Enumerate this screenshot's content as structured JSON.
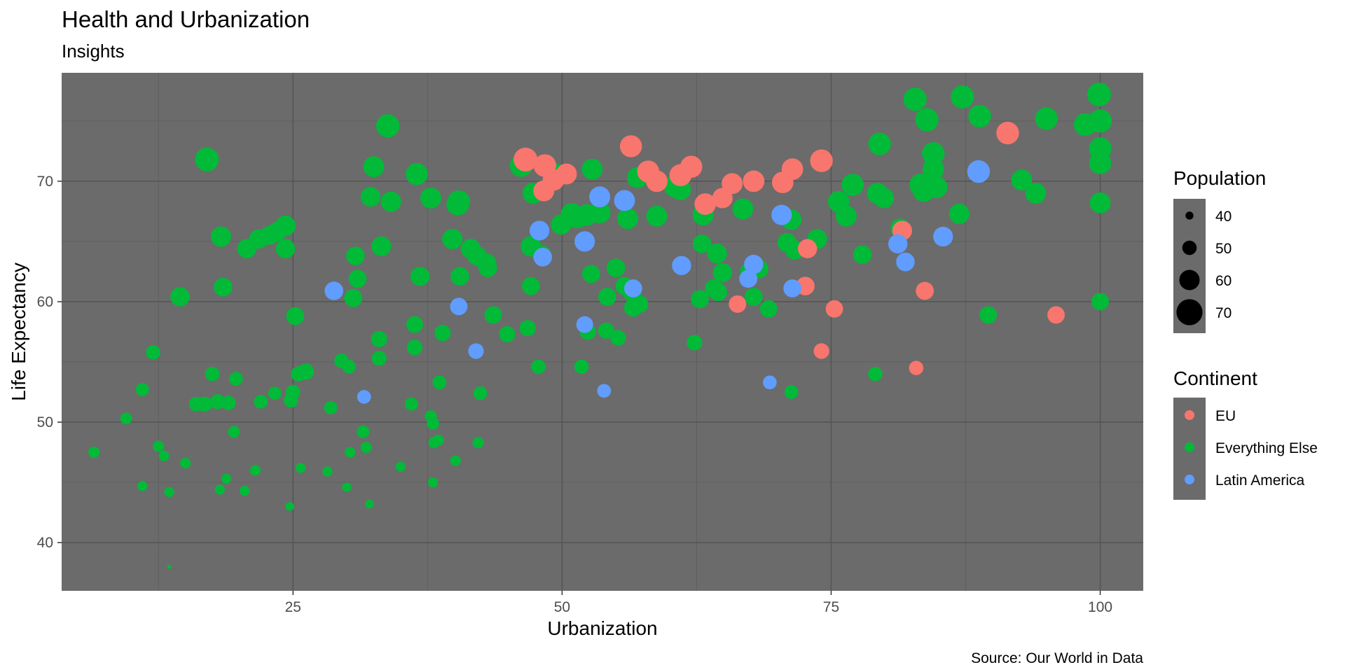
{
  "chart_data": {
    "type": "scatter",
    "title": "Health and Urbanization",
    "subtitle": "Insights",
    "xlabel": "Urbanization",
    "ylabel": "Life Expectancy",
    "caption": "Source: Our World in Data",
    "xlim": [
      3.5,
      104
    ],
    "ylim": [
      36,
      79
    ],
    "x_ticks": [
      25,
      50,
      75,
      100
    ],
    "y_ticks": [
      40,
      50,
      60,
      70
    ],
    "grid": true,
    "panel_color": "#6b6b6b",
    "size_legend": {
      "title": "Population",
      "values": [
        40,
        50,
        60,
        70
      ]
    },
    "color_legend": {
      "title": "Continent",
      "entries": [
        {
          "label": "EU",
          "color": "#f8766d"
        },
        {
          "label": "Everything Else",
          "color": "#00ba38"
        },
        {
          "label": "Latin America",
          "color": "#619cff"
        }
      ]
    },
    "legend_position": "right",
    "series": [
      {
        "name": "Everything Else",
        "color": "#00ba38",
        "points": [
          [
            6.5,
            47.5,
            45
          ],
          [
            9.5,
            50.3,
            46
          ],
          [
            11,
            52.7,
            48
          ],
          [
            12,
            55.8,
            50
          ],
          [
            12.5,
            48,
            45
          ],
          [
            13,
            47.2,
            44
          ],
          [
            11,
            44.7,
            43
          ],
          [
            13.5,
            44.2,
            43
          ],
          [
            13.5,
            38,
            35
          ],
          [
            14.5,
            60.4,
            58
          ],
          [
            15,
            46.6,
            44
          ],
          [
            16,
            51.5,
            50
          ],
          [
            16.8,
            51.5,
            51
          ],
          [
            17,
            71.8,
            66
          ],
          [
            17.5,
            54,
            50
          ],
          [
            18,
            51.7,
            51
          ],
          [
            18.3,
            65.4,
            60
          ],
          [
            18.5,
            61.2,
            57
          ],
          [
            18.2,
            44.4,
            43
          ],
          [
            18.8,
            45.3,
            43
          ],
          [
            19,
            51.6,
            50
          ],
          [
            19.5,
            49.2,
            46
          ],
          [
            19.7,
            53.6,
            49
          ],
          [
            20.5,
            44.3,
            43
          ],
          [
            20.7,
            64.4,
            58
          ],
          [
            21.5,
            46,
            44
          ],
          [
            21.8,
            65.2,
            58
          ],
          [
            22,
            51.7,
            49
          ],
          [
            22.8,
            65.5,
            57
          ],
          [
            23.3,
            52.4,
            48
          ],
          [
            23.5,
            65.8,
            58
          ],
          [
            24.3,
            66.3,
            60
          ],
          [
            24.3,
            64.4,
            58
          ],
          [
            24.7,
            43,
            41
          ],
          [
            24.8,
            51.8,
            50
          ],
          [
            25,
            52.5,
            50
          ],
          [
            25.2,
            58.8,
            56
          ],
          [
            25.5,
            54,
            51
          ],
          [
            25.7,
            46.2,
            43
          ],
          [
            26.2,
            54.2,
            53
          ],
          [
            28.2,
            45.9,
            43
          ],
          [
            28.5,
            51.2,
            48
          ],
          [
            29.5,
            55.1,
            50
          ],
          [
            30,
            44.6,
            42
          ],
          [
            30.2,
            54.6,
            49
          ],
          [
            30.3,
            47.5,
            44
          ],
          [
            30.6,
            60.3,
            56
          ],
          [
            30.8,
            63.8,
            57
          ],
          [
            31,
            61.9,
            56
          ],
          [
            31.5,
            49.2,
            47
          ],
          [
            31.8,
            47.9,
            45
          ],
          [
            32.1,
            43.2,
            41
          ],
          [
            32.2,
            68.7,
            59
          ],
          [
            32.5,
            71.2,
            61
          ],
          [
            33,
            56.9,
            53
          ],
          [
            33.2,
            64.6,
            59
          ],
          [
            33,
            55.3,
            51
          ],
          [
            33.8,
            74.6,
            65
          ],
          [
            34.1,
            68.3,
            60
          ],
          [
            35,
            46.3,
            43
          ],
          [
            36,
            51.5,
            48
          ],
          [
            36.3,
            58.1,
            54
          ],
          [
            36.3,
            56.2,
            52
          ],
          [
            36.5,
            70.6,
            63
          ],
          [
            36.8,
            62.1,
            58
          ],
          [
            37.8,
            68.6,
            61
          ],
          [
            37.8,
            50.5,
            46
          ],
          [
            38,
            45,
            43
          ],
          [
            38,
            49.9,
            47
          ],
          [
            38.1,
            48.3,
            45
          ],
          [
            38.5,
            48.5,
            45
          ],
          [
            38.6,
            53.3,
            49
          ],
          [
            38.9,
            57.4,
            53
          ],
          [
            39.8,
            65.2,
            60
          ],
          [
            40.1,
            46.8,
            44
          ],
          [
            40.3,
            68.1,
            64
          ],
          [
            40.4,
            68.3,
            64
          ],
          [
            40.5,
            62.1,
            57
          ],
          [
            41.5,
            64.4,
            59
          ],
          [
            42.1,
            63.8,
            58
          ],
          [
            42.2,
            48.3,
            45
          ],
          [
            42.4,
            52.4,
            49
          ],
          [
            43,
            63.2,
            58
          ],
          [
            43.1,
            62.8,
            57
          ],
          [
            43.6,
            58.9,
            55
          ],
          [
            44.9,
            57.3,
            53
          ],
          [
            46.2,
            71.3,
            64
          ],
          [
            46.8,
            57.8,
            53
          ],
          [
            47.1,
            64.6,
            60
          ],
          [
            47.1,
            61.3,
            56
          ],
          [
            47.3,
            69,
            61
          ],
          [
            47.8,
            54.6,
            50
          ],
          [
            48.1,
            63.9,
            57
          ],
          [
            49.4,
            70.6,
            61
          ],
          [
            49.9,
            66.4,
            60
          ],
          [
            50.9,
            67.3,
            62
          ],
          [
            51.4,
            67,
            62
          ],
          [
            51.8,
            54.6,
            50
          ],
          [
            52.3,
            67.2,
            62
          ],
          [
            52.4,
            57.5,
            53
          ],
          [
            52.7,
            62.3,
            56
          ],
          [
            52.8,
            71,
            61
          ],
          [
            53.5,
            67.4,
            62
          ],
          [
            54.1,
            57.6,
            53
          ],
          [
            54.2,
            60.4,
            56
          ],
          [
            55,
            62.8,
            57
          ],
          [
            55.2,
            57,
            52
          ],
          [
            55.8,
            61.3,
            56
          ],
          [
            56.1,
            66.9,
            61
          ],
          [
            56.5,
            60.8,
            57
          ],
          [
            56.6,
            59.5,
            56
          ],
          [
            57,
            70.3,
            61
          ],
          [
            57.2,
            59.8,
            55
          ],
          [
            58.8,
            67.1,
            61
          ],
          [
            60.5,
            69.6,
            64
          ],
          [
            61,
            69.3,
            61
          ],
          [
            62.3,
            56.6,
            52
          ],
          [
            62.8,
            60.2,
            56
          ],
          [
            63,
            64.8,
            57
          ],
          [
            63.1,
            67.2,
            61
          ],
          [
            64.1,
            61.1,
            56
          ],
          [
            64.4,
            64,
            59
          ],
          [
            64.5,
            60.8,
            56
          ],
          [
            64.9,
            62.4,
            58
          ],
          [
            66.8,
            67.7,
            61
          ],
          [
            67.4,
            62.5,
            57
          ],
          [
            67.8,
            60.4,
            56
          ],
          [
            68.3,
            62.7,
            57
          ],
          [
            69.2,
            59.4,
            55
          ],
          [
            70.9,
            64.9,
            58
          ],
          [
            71.3,
            66.8,
            60
          ],
          [
            71.3,
            52.5,
            49
          ],
          [
            71.6,
            64.3,
            58
          ],
          [
            73.7,
            65.2,
            59
          ],
          [
            75.7,
            68.3,
            62
          ],
          [
            76.4,
            67.1,
            61
          ],
          [
            77,
            69.7,
            63
          ],
          [
            77.9,
            63.9,
            57
          ],
          [
            79.1,
            54,
            50
          ],
          [
            79.3,
            69,
            61
          ],
          [
            79.5,
            73.1,
            64
          ],
          [
            79.9,
            68.6,
            60
          ],
          [
            81.4,
            66.1,
            58
          ],
          [
            82.8,
            76.8,
            65
          ],
          [
            83.3,
            69.7,
            63
          ],
          [
            83.6,
            69.2,
            63
          ],
          [
            83.9,
            75.1,
            65
          ],
          [
            84.5,
            72.3,
            64
          ],
          [
            84.5,
            71,
            62
          ],
          [
            84.8,
            69.5,
            62
          ],
          [
            86.9,
            67.3,
            60
          ],
          [
            87.2,
            77,
            65
          ],
          [
            88.8,
            75.4,
            64
          ],
          [
            89.6,
            58.9,
            55
          ],
          [
            92.7,
            70.1,
            61
          ],
          [
            94,
            69,
            61
          ],
          [
            95,
            75.2,
            64
          ],
          [
            98.6,
            74.7,
            64
          ],
          [
            99.9,
            77.2,
            66
          ],
          [
            100,
            75,
            65
          ],
          [
            100,
            72.7,
            64
          ],
          [
            100,
            71.5,
            63
          ],
          [
            100,
            68.2,
            61
          ],
          [
            100,
            60,
            55
          ]
        ]
      },
      {
        "name": "EU",
        "color": "#f8766d",
        "points": [
          [
            46.6,
            71.8,
            66
          ],
          [
            48.4,
            71.3,
            64
          ],
          [
            48.3,
            69.2,
            61
          ],
          [
            49.2,
            70.1,
            62
          ],
          [
            50.4,
            70.6,
            61
          ],
          [
            56.4,
            72.9,
            63
          ],
          [
            58,
            70.8,
            63
          ],
          [
            58.8,
            70,
            62
          ],
          [
            61,
            70.5,
            63
          ],
          [
            62,
            71.2,
            63
          ],
          [
            63.3,
            68.1,
            62
          ],
          [
            64.9,
            68.6,
            60
          ],
          [
            65.8,
            69.8,
            61
          ],
          [
            66.3,
            59.8,
            55
          ],
          [
            67.8,
            70,
            62
          ],
          [
            70.5,
            69.9,
            62
          ],
          [
            71.4,
            71,
            62
          ],
          [
            72.8,
            64.4,
            58
          ],
          [
            72.6,
            61.3,
            57
          ],
          [
            74.1,
            71.7,
            64
          ],
          [
            74.1,
            55.9,
            52
          ],
          [
            75.3,
            59.4,
            55
          ],
          [
            81.6,
            65.9,
            59
          ],
          [
            82.9,
            54.5,
            50
          ],
          [
            83.7,
            60.9,
            56
          ],
          [
            91.4,
            74,
            64
          ],
          [
            95.9,
            58.9,
            55
          ]
        ]
      },
      {
        "name": "Latin America",
        "color": "#619cff",
        "points": [
          [
            28.8,
            60.9,
            57
          ],
          [
            31.6,
            52.1,
            49
          ],
          [
            40.4,
            59.6,
            55
          ],
          [
            42,
            55.9,
            52
          ],
          [
            47.9,
            65.9,
            59
          ],
          [
            48.2,
            63.7,
            57
          ],
          [
            52.1,
            58.1,
            54
          ],
          [
            52.1,
            65,
            60
          ],
          [
            53.5,
            68.7,
            61
          ],
          [
            53.9,
            52.6,
            49
          ],
          [
            55.8,
            68.4,
            61
          ],
          [
            56.6,
            61.1,
            56
          ],
          [
            61.1,
            63,
            58
          ],
          [
            67.3,
            61.9,
            56
          ],
          [
            67.8,
            63.1,
            58
          ],
          [
            69.3,
            53.3,
            49
          ],
          [
            70.4,
            67.2,
            60
          ],
          [
            71.4,
            61.1,
            56
          ],
          [
            81.2,
            64.8,
            58
          ],
          [
            81.9,
            63.3,
            57
          ],
          [
            85.4,
            65.4,
            59
          ],
          [
            88.7,
            70.8,
            64
          ]
        ]
      }
    ]
  }
}
